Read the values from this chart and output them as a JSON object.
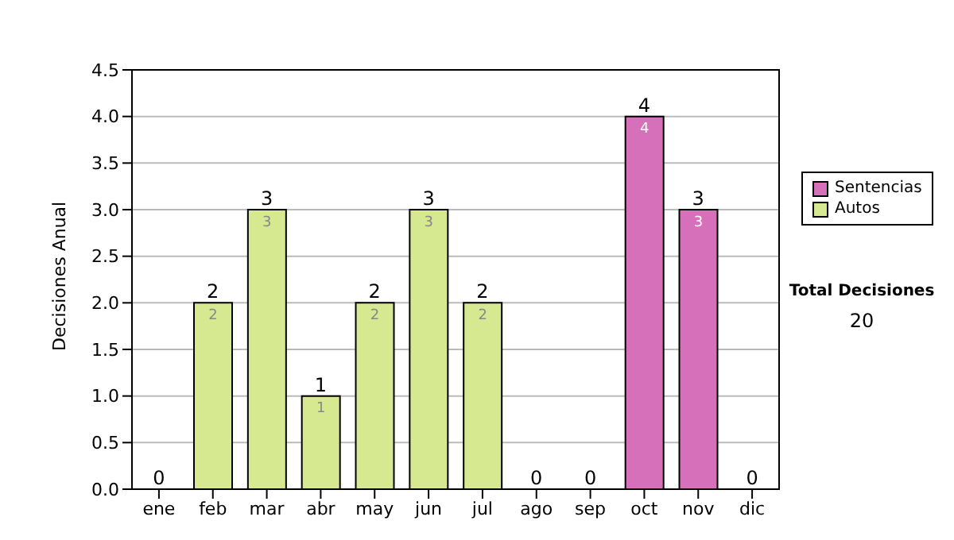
{
  "chart_data": {
    "type": "bar",
    "stacked": true,
    "ylabel": "Decisiones Anual",
    "categories": [
      "ene",
      "feb",
      "mar",
      "abr",
      "may",
      "jun",
      "jul",
      "ago",
      "sep",
      "oct",
      "nov",
      "dic"
    ],
    "series": [
      {
        "name": "Sentencias",
        "color": "#d670bb",
        "values": [
          null,
          null,
          null,
          null,
          null,
          null,
          null,
          null,
          null,
          4,
          3,
          null
        ]
      },
      {
        "name": "Autos",
        "color": "#d6e890",
        "values": [
          null,
          2,
          3,
          1,
          2,
          3,
          2,
          null,
          null,
          null,
          null,
          null
        ]
      }
    ],
    "totals": [
      "0",
      "2",
      "3",
      "1",
      "2",
      "3",
      "2",
      "0",
      "0",
      "4",
      "3",
      "0"
    ],
    "data_labels": true,
    "ylim": [
      0,
      4.5
    ],
    "yticks": [
      {
        "value": 0,
        "label": "0.0"
      },
      {
        "value": 0.5,
        "label": "0.5"
      },
      {
        "value": 1,
        "label": "1.0"
      },
      {
        "value": 1.5,
        "label": "1.5"
      },
      {
        "value": 2,
        "label": "2.0"
      },
      {
        "value": 2.5,
        "label": "2.5"
      },
      {
        "value": 3,
        "label": "3.0"
      },
      {
        "value": 3.5,
        "label": "3.5"
      },
      {
        "value": 4,
        "label": "4.0"
      },
      {
        "value": 4.5,
        "label": "4.5"
      }
    ],
    "grid": "y",
    "legend": "right",
    "annotations": [
      "Total Decisiones",
      "20"
    ]
  }
}
